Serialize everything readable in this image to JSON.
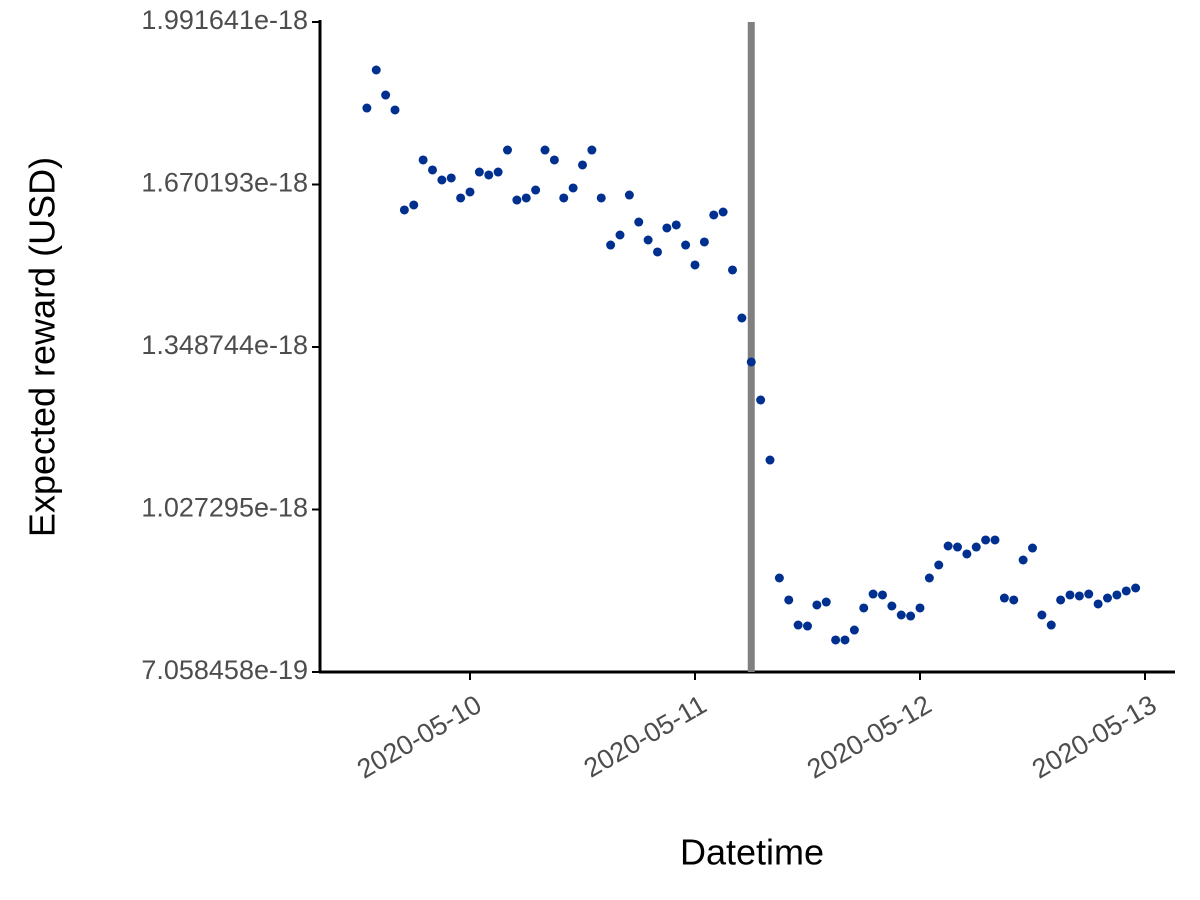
{
  "chart_data": {
    "type": "scatter",
    "xlabel": "Datetime",
    "ylabel": "Expected reward (USD)",
    "color": "#00308f",
    "xlim": [
      "2020-05-09 08:00",
      "2020-05-13 03:12"
    ],
    "xticks": [
      "2020-05-10",
      "2020-05-11",
      "2020-05-12",
      "2020-05-13"
    ],
    "ylim": [
      7.058458e-19,
      1.991641e-18
    ],
    "yticks": [
      7.058458e-19,
      1.027295e-18,
      1.348744e-18,
      1.670193e-18,
      1.991641e-18
    ],
    "vline": {
      "x": "2020-05-11 06:00",
      "color": "#808080"
    },
    "x": [
      "2020-05-09 13:00",
      "2020-05-09 14:00",
      "2020-05-09 15:00",
      "2020-05-09 16:00",
      "2020-05-09 17:00",
      "2020-05-09 18:00",
      "2020-05-09 19:00",
      "2020-05-09 20:00",
      "2020-05-09 21:00",
      "2020-05-09 22:00",
      "2020-05-09 23:00",
      "2020-05-10 00:00",
      "2020-05-10 01:00",
      "2020-05-10 02:00",
      "2020-05-10 03:00",
      "2020-05-10 04:00",
      "2020-05-10 05:00",
      "2020-05-10 06:00",
      "2020-05-10 07:00",
      "2020-05-10 08:00",
      "2020-05-10 09:00",
      "2020-05-10 10:00",
      "2020-05-10 11:00",
      "2020-05-10 12:00",
      "2020-05-10 13:00",
      "2020-05-10 14:00",
      "2020-05-10 15:00",
      "2020-05-10 16:00",
      "2020-05-10 17:00",
      "2020-05-10 18:00",
      "2020-05-10 19:00",
      "2020-05-10 20:00",
      "2020-05-10 21:00",
      "2020-05-10 22:00",
      "2020-05-10 23:00",
      "2020-05-11 00:00",
      "2020-05-11 01:00",
      "2020-05-11 02:00",
      "2020-05-11 03:00",
      "2020-05-11 04:00",
      "2020-05-11 05:00",
      "2020-05-11 06:00",
      "2020-05-11 07:00",
      "2020-05-11 08:00",
      "2020-05-11 09:00",
      "2020-05-11 10:00",
      "2020-05-11 11:00",
      "2020-05-11 12:00",
      "2020-05-11 13:00",
      "2020-05-11 14:00",
      "2020-05-11 15:00",
      "2020-05-11 16:00",
      "2020-05-11 17:00",
      "2020-05-11 18:00",
      "2020-05-11 19:00",
      "2020-05-11 20:00",
      "2020-05-11 21:00",
      "2020-05-11 22:00",
      "2020-05-11 23:00",
      "2020-05-12 00:00",
      "2020-05-12 01:00",
      "2020-05-12 02:00",
      "2020-05-12 03:00",
      "2020-05-12 04:00",
      "2020-05-12 05:00",
      "2020-05-12 06:00",
      "2020-05-12 07:00",
      "2020-05-12 08:00",
      "2020-05-12 09:00",
      "2020-05-12 10:00",
      "2020-05-12 11:00",
      "2020-05-12 12:00",
      "2020-05-12 13:00",
      "2020-05-12 14:00",
      "2020-05-12 15:00",
      "2020-05-12 16:00",
      "2020-05-12 17:00",
      "2020-05-12 18:00",
      "2020-05-12 19:00",
      "2020-05-12 20:00",
      "2020-05-12 21:00",
      "2020-05-12 22:00",
      "2020-05-12 23:00"
    ],
    "values": [
      1.8215e-18,
      1.8967e-18,
      1.8472e-18,
      1.8176e-18,
      1.6198e-18,
      1.6297e-18,
      1.7187e-18,
      1.6989e-18,
      1.6791e-18,
      1.6831e-18,
      1.6435e-18,
      1.6554e-18,
      1.6949e-18,
      1.689e-18,
      1.6949e-18,
      1.7384e-18,
      1.6395e-18,
      1.6435e-18,
      1.6593e-18,
      1.7384e-18,
      1.7187e-18,
      1.6435e-18,
      1.6633e-18,
      1.7088e-18,
      1.7384e-18,
      1.6435e-18,
      1.5505e-18,
      1.5703e-18,
      1.6494e-18,
      1.596e-18,
      1.5604e-18,
      1.5367e-18,
      1.5842e-18,
      1.5901e-18,
      1.5505e-18,
      1.511e-18,
      1.5565e-18,
      1.6099e-18,
      1.6158e-18,
      1.5011e-18,
      1.4061e-18,
      1.3191e-18,
      1.2439e-18,
      1.1252e-18,
      8.918e-19,
      8.483e-19,
      7.988e-19,
      7.968e-19,
      8.384e-19,
      8.443e-19,
      7.692e-19,
      7.692e-19,
      7.889e-19,
      8.325e-19,
      8.601e-19,
      8.582e-19,
      8.364e-19,
      8.186e-19,
      8.166e-19,
      8.325e-19,
      8.918e-19,
      9.175e-19,
      9.551e-19,
      9.531e-19,
      9.393e-19,
      9.531e-19,
      9.67e-19,
      9.67e-19,
      8.522e-19,
      8.483e-19,
      9.274e-19,
      9.511e-19,
      8.186e-19,
      7.988e-19,
      8.483e-19,
      8.582e-19,
      8.562e-19,
      8.601e-19,
      8.404e-19,
      8.522e-19,
      8.582e-19,
      8.661e-19,
      8.72e-19
    ]
  }
}
